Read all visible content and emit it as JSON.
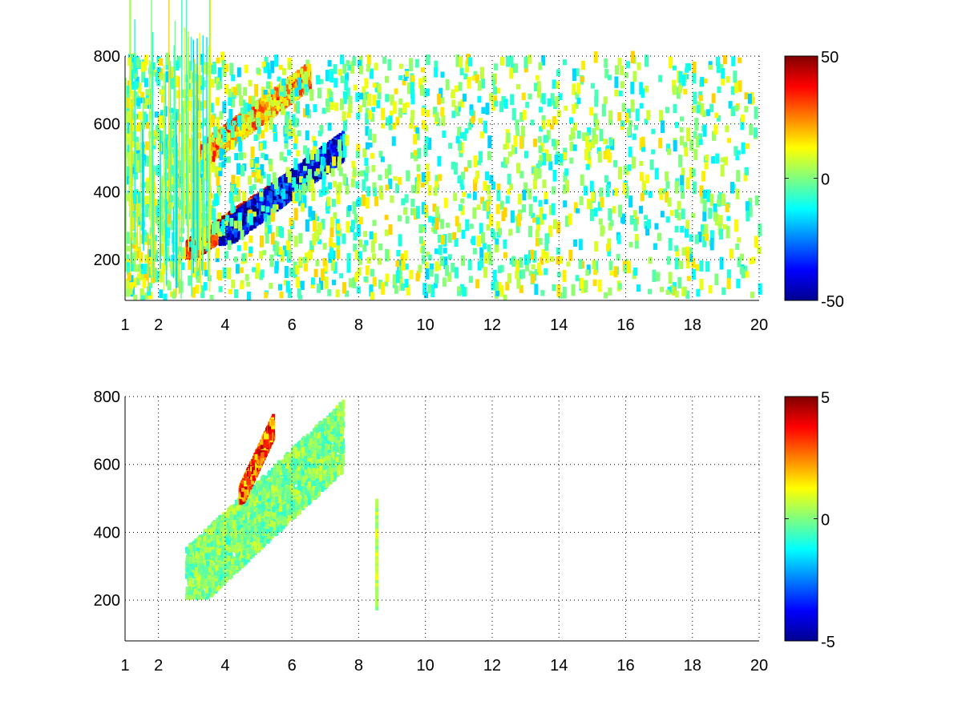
{
  "chart_data": [
    {
      "type": "heatmap",
      "title": "",
      "xlabel": "",
      "ylabel": "",
      "xlim": [
        1,
        20
      ],
      "ylim": [
        80,
        800
      ],
      "x_ticks": [
        1,
        2,
        4,
        6,
        8,
        10,
        12,
        14,
        16,
        18,
        20
      ],
      "y_ticks": [
        200,
        400,
        600,
        800
      ],
      "grid": "on",
      "colormap": "jet",
      "clim": [
        -50,
        50
      ],
      "colorbar_ticks": [
        -50,
        0,
        50
      ],
      "colorbar_placement": "right",
      "regions": [
        {
          "feature": "warm ridge",
          "x": [
            2.8,
            6.0
          ],
          "y": [
            200,
            480
          ],
          "value": 40
        },
        {
          "feature": "cool ridge",
          "x": [
            3.8,
            7.5
          ],
          "y": [
            240,
            600
          ],
          "value": -40
        },
        {
          "feature": "warm upper band",
          "x": [
            3.2,
            6.5
          ],
          "y": [
            480,
            800
          ],
          "value": 20
        },
        {
          "feature": "scattered noise",
          "x": [
            1,
            20
          ],
          "y": [
            80,
            800
          ],
          "value": 0
        }
      ]
    },
    {
      "type": "heatmap",
      "title": "",
      "xlabel": "",
      "ylabel": "",
      "xlim": [
        1,
        20
      ],
      "ylim": [
        80,
        800
      ],
      "x_ticks": [
        1,
        2,
        4,
        6,
        8,
        10,
        12,
        14,
        16,
        18,
        20
      ],
      "y_ticks": [
        200,
        400,
        600,
        800
      ],
      "grid": "on",
      "colormap": "jet",
      "clim": [
        -5,
        5
      ],
      "colorbar_ticks": [
        -5,
        0,
        5
      ],
      "colorbar_placement": "right",
      "regions": [
        {
          "feature": "main band",
          "x": [
            2.8,
            7.5
          ],
          "y": [
            200,
            780
          ],
          "value": 0
        },
        {
          "feature": "warm spot",
          "x": [
            4.4,
            5.4
          ],
          "y": [
            480,
            760
          ],
          "value": 3
        },
        {
          "feature": "vertical streak",
          "x": [
            8.5,
            8.6
          ],
          "y": [
            170,
            490
          ],
          "value": 1
        }
      ]
    }
  ]
}
